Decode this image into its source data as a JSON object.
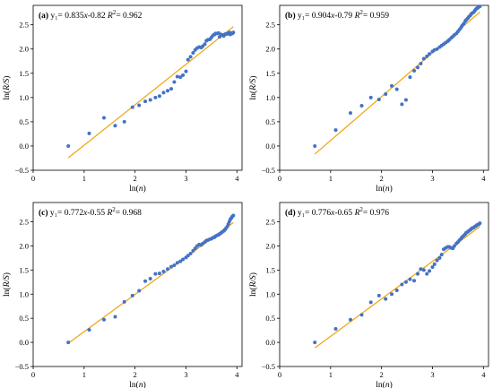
{
  "colors": {
    "points": "#4472C4",
    "fit": "#F0A30A",
    "axis": "#000000"
  },
  "chart_data": [
    {
      "type": "scatter",
      "panel_label": "(a)",
      "equation": "y₁= 0.835x-0.82",
      "r2_text": "R²= 0.962",
      "xlabel": "ln(n)",
      "ylabel": "ln(R/S)",
      "xlim": [
        0,
        4.1
      ],
      "ylim": [
        -0.5,
        2.9
      ],
      "xticks": [
        0,
        1,
        2,
        3,
        4
      ],
      "yticks": [
        -0.5,
        0.0,
        0.5,
        1.0,
        1.5,
        2.0,
        2.5
      ],
      "ytick_labels": [
        "−0.5",
        "0.0",
        "0.5",
        "1.0",
        "1.5",
        "2.0",
        "2.5"
      ],
      "fit": {
        "slope": 0.835,
        "intercept": -0.82,
        "x_range": [
          0.69,
          3.93
        ]
      },
      "points": [
        [
          0.69,
          0.0
        ],
        [
          1.1,
          0.26
        ],
        [
          1.39,
          0.58
        ],
        [
          1.61,
          0.42
        ],
        [
          1.79,
          0.5
        ],
        [
          1.95,
          0.8
        ],
        [
          2.08,
          0.84
        ],
        [
          2.2,
          0.92
        ],
        [
          2.3,
          0.95
        ],
        [
          2.4,
          1.0
        ],
        [
          2.48,
          1.03
        ],
        [
          2.56,
          1.1
        ],
        [
          2.64,
          1.14
        ],
        [
          2.71,
          1.18
        ],
        [
          2.77,
          1.32
        ],
        [
          2.83,
          1.43
        ],
        [
          2.89,
          1.42
        ],
        [
          2.94,
          1.46
        ],
        [
          3.0,
          1.54
        ],
        [
          3.04,
          1.78
        ],
        [
          3.09,
          1.84
        ],
        [
          3.14,
          1.92
        ],
        [
          3.18,
          1.98
        ],
        [
          3.22,
          2.02
        ],
        [
          3.26,
          2.04
        ],
        [
          3.3,
          2.03
        ],
        [
          3.33,
          2.06
        ],
        [
          3.37,
          2.1
        ],
        [
          3.4,
          2.17
        ],
        [
          3.43,
          2.19
        ],
        [
          3.47,
          2.2
        ],
        [
          3.5,
          2.24
        ],
        [
          3.53,
          2.28
        ],
        [
          3.56,
          2.3
        ],
        [
          3.58,
          2.32
        ],
        [
          3.61,
          2.32
        ],
        [
          3.64,
          2.33
        ],
        [
          3.66,
          2.25
        ],
        [
          3.69,
          2.3
        ],
        [
          3.71,
          2.29
        ],
        [
          3.74,
          2.27
        ],
        [
          3.76,
          2.3
        ],
        [
          3.78,
          2.31
        ],
        [
          3.81,
          2.31
        ],
        [
          3.83,
          2.32
        ],
        [
          3.85,
          2.34
        ],
        [
          3.87,
          2.3
        ],
        [
          3.89,
          2.33
        ],
        [
          3.91,
          2.32
        ],
        [
          3.93,
          2.34
        ]
      ]
    },
    {
      "type": "scatter",
      "panel_label": "(b)",
      "equation": "y₁= 0.904x-0.79",
      "r2_text": "R²= 0.959",
      "xlabel": "ln(n)",
      "ylabel": "ln(R/S)",
      "xlim": [
        0,
        4.1
      ],
      "ylim": [
        -0.5,
        2.9
      ],
      "xticks": [
        0,
        1,
        2,
        3,
        4
      ],
      "yticks": [
        -0.5,
        0.0,
        0.5,
        1.0,
        1.5,
        2.0,
        2.5
      ],
      "ytick_labels": [
        "−0.5",
        "0.0",
        "0.5",
        "1.0",
        "1.5",
        "2.0",
        "2.5"
      ],
      "fit": {
        "slope": 0.904,
        "intercept": -0.79,
        "x_range": [
          0.69,
          3.93
        ]
      },
      "points": [
        [
          0.69,
          0.0
        ],
        [
          1.1,
          0.33
        ],
        [
          1.39,
          0.68
        ],
        [
          1.61,
          0.83
        ],
        [
          1.79,
          1.0
        ],
        [
          1.95,
          0.96
        ],
        [
          2.08,
          1.07
        ],
        [
          2.2,
          1.24
        ],
        [
          2.3,
          1.17
        ],
        [
          2.4,
          0.86
        ],
        [
          2.48,
          0.95
        ],
        [
          2.56,
          1.42
        ],
        [
          2.64,
          1.55
        ],
        [
          2.71,
          1.62
        ],
        [
          2.77,
          1.7
        ],
        [
          2.83,
          1.8
        ],
        [
          2.89,
          1.85
        ],
        [
          2.94,
          1.9
        ],
        [
          3.0,
          1.95
        ],
        [
          3.04,
          1.98
        ],
        [
          3.09,
          2.0
        ],
        [
          3.14,
          2.04
        ],
        [
          3.18,
          2.07
        ],
        [
          3.22,
          2.1
        ],
        [
          3.26,
          2.13
        ],
        [
          3.3,
          2.16
        ],
        [
          3.33,
          2.19
        ],
        [
          3.37,
          2.23
        ],
        [
          3.4,
          2.26
        ],
        [
          3.43,
          2.29
        ],
        [
          3.47,
          2.32
        ],
        [
          3.5,
          2.36
        ],
        [
          3.53,
          2.4
        ],
        [
          3.56,
          2.44
        ],
        [
          3.58,
          2.48
        ],
        [
          3.61,
          2.52
        ],
        [
          3.64,
          2.57
        ],
        [
          3.66,
          2.6
        ],
        [
          3.69,
          2.63
        ],
        [
          3.71,
          2.66
        ],
        [
          3.74,
          2.69
        ],
        [
          3.76,
          2.72
        ],
        [
          3.78,
          2.74
        ],
        [
          3.81,
          2.76
        ],
        [
          3.83,
          2.79
        ],
        [
          3.85,
          2.82
        ],
        [
          3.87,
          2.84
        ],
        [
          3.89,
          2.85
        ],
        [
          3.91,
          2.87
        ],
        [
          3.93,
          2.88
        ]
      ]
    },
    {
      "type": "scatter",
      "panel_label": "(c)",
      "equation": "y₁= 0.772x-0.55",
      "r2_text": "R²= 0.968",
      "xlabel": "ln(n)",
      "ylabel": "ln(R/S)",
      "xlim": [
        0,
        4.1
      ],
      "ylim": [
        -0.5,
        2.9
      ],
      "xticks": [
        0,
        1,
        2,
        3,
        4
      ],
      "yticks": [
        -0.5,
        0.0,
        0.5,
        1.0,
        1.5,
        2.0,
        2.5
      ],
      "ytick_labels": [
        "−0.5",
        "0.0",
        "0.5",
        "1.0",
        "1.5",
        "2.0",
        "2.5"
      ],
      "fit": {
        "slope": 0.772,
        "intercept": -0.55,
        "x_range": [
          0.69,
          3.93
        ]
      },
      "points": [
        [
          0.69,
          0.0
        ],
        [
          1.1,
          0.26
        ],
        [
          1.39,
          0.47
        ],
        [
          1.61,
          0.53
        ],
        [
          1.79,
          0.84
        ],
        [
          1.95,
          0.97
        ],
        [
          2.08,
          1.07
        ],
        [
          2.2,
          1.27
        ],
        [
          2.3,
          1.32
        ],
        [
          2.4,
          1.42
        ],
        [
          2.48,
          1.43
        ],
        [
          2.56,
          1.47
        ],
        [
          2.64,
          1.52
        ],
        [
          2.71,
          1.57
        ],
        [
          2.77,
          1.6
        ],
        [
          2.83,
          1.65
        ],
        [
          2.89,
          1.68
        ],
        [
          2.94,
          1.72
        ],
        [
          3.0,
          1.76
        ],
        [
          3.04,
          1.8
        ],
        [
          3.09,
          1.84
        ],
        [
          3.14,
          1.9
        ],
        [
          3.18,
          1.95
        ],
        [
          3.22,
          2.0
        ],
        [
          3.26,
          2.03
        ],
        [
          3.3,
          2.02
        ],
        [
          3.33,
          2.05
        ],
        [
          3.37,
          2.08
        ],
        [
          3.4,
          2.11
        ],
        [
          3.43,
          2.12
        ],
        [
          3.47,
          2.14
        ],
        [
          3.5,
          2.15
        ],
        [
          3.53,
          2.17
        ],
        [
          3.56,
          2.18
        ],
        [
          3.58,
          2.2
        ],
        [
          3.61,
          2.22
        ],
        [
          3.64,
          2.23
        ],
        [
          3.66,
          2.25
        ],
        [
          3.69,
          2.27
        ],
        [
          3.71,
          2.29
        ],
        [
          3.74,
          2.31
        ],
        [
          3.76,
          2.33
        ],
        [
          3.78,
          2.36
        ],
        [
          3.81,
          2.4
        ],
        [
          3.83,
          2.45
        ],
        [
          3.85,
          2.5
        ],
        [
          3.87,
          2.55
        ],
        [
          3.89,
          2.58
        ],
        [
          3.91,
          2.61
        ],
        [
          3.93,
          2.63
        ]
      ]
    },
    {
      "type": "scatter",
      "panel_label": "(d)",
      "equation": "y₁= 0.776x-0.65",
      "r2_text": "R²= 0.976",
      "xlabel": "ln(n)",
      "ylabel": "ln(R/S)",
      "xlim": [
        0,
        4.1
      ],
      "ylim": [
        -0.5,
        2.9
      ],
      "xticks": [
        0,
        1,
        2,
        3,
        4
      ],
      "yticks": [
        -0.5,
        0.0,
        0.5,
        1.0,
        1.5,
        2.0,
        2.5
      ],
      "ytick_labels": [
        "−0.5",
        "0.0",
        "0.5",
        "1.0",
        "1.5",
        "2.0",
        "2.5"
      ],
      "fit": {
        "slope": 0.776,
        "intercept": -0.65,
        "x_range": [
          0.69,
          3.93
        ]
      },
      "points": [
        [
          0.69,
          0.0
        ],
        [
          1.1,
          0.28
        ],
        [
          1.39,
          0.47
        ],
        [
          1.61,
          0.57
        ],
        [
          1.79,
          0.83
        ],
        [
          1.95,
          0.97
        ],
        [
          2.08,
          0.9
        ],
        [
          2.2,
          1.0
        ],
        [
          2.3,
          1.08
        ],
        [
          2.4,
          1.2
        ],
        [
          2.48,
          1.25
        ],
        [
          2.56,
          1.31
        ],
        [
          2.64,
          1.28
        ],
        [
          2.71,
          1.42
        ],
        [
          2.77,
          1.52
        ],
        [
          2.83,
          1.5
        ],
        [
          2.89,
          1.42
        ],
        [
          2.94,
          1.48
        ],
        [
          3.0,
          1.56
        ],
        [
          3.04,
          1.62
        ],
        [
          3.09,
          1.7
        ],
        [
          3.14,
          1.75
        ],
        [
          3.18,
          1.82
        ],
        [
          3.22,
          1.93
        ],
        [
          3.26,
          1.96
        ],
        [
          3.3,
          1.98
        ],
        [
          3.33,
          1.98
        ],
        [
          3.37,
          1.96
        ],
        [
          3.4,
          1.95
        ],
        [
          3.43,
          2.0
        ],
        [
          3.47,
          2.05
        ],
        [
          3.5,
          2.08
        ],
        [
          3.53,
          2.12
        ],
        [
          3.56,
          2.15
        ],
        [
          3.58,
          2.18
        ],
        [
          3.61,
          2.21
        ],
        [
          3.64,
          2.24
        ],
        [
          3.66,
          2.27
        ],
        [
          3.69,
          2.29
        ],
        [
          3.71,
          2.31
        ],
        [
          3.74,
          2.33
        ],
        [
          3.76,
          2.35
        ],
        [
          3.78,
          2.37
        ],
        [
          3.81,
          2.38
        ],
        [
          3.83,
          2.4
        ],
        [
          3.85,
          2.41
        ],
        [
          3.87,
          2.43
        ],
        [
          3.89,
          2.44
        ],
        [
          3.91,
          2.45
        ],
        [
          3.93,
          2.47
        ]
      ]
    }
  ]
}
